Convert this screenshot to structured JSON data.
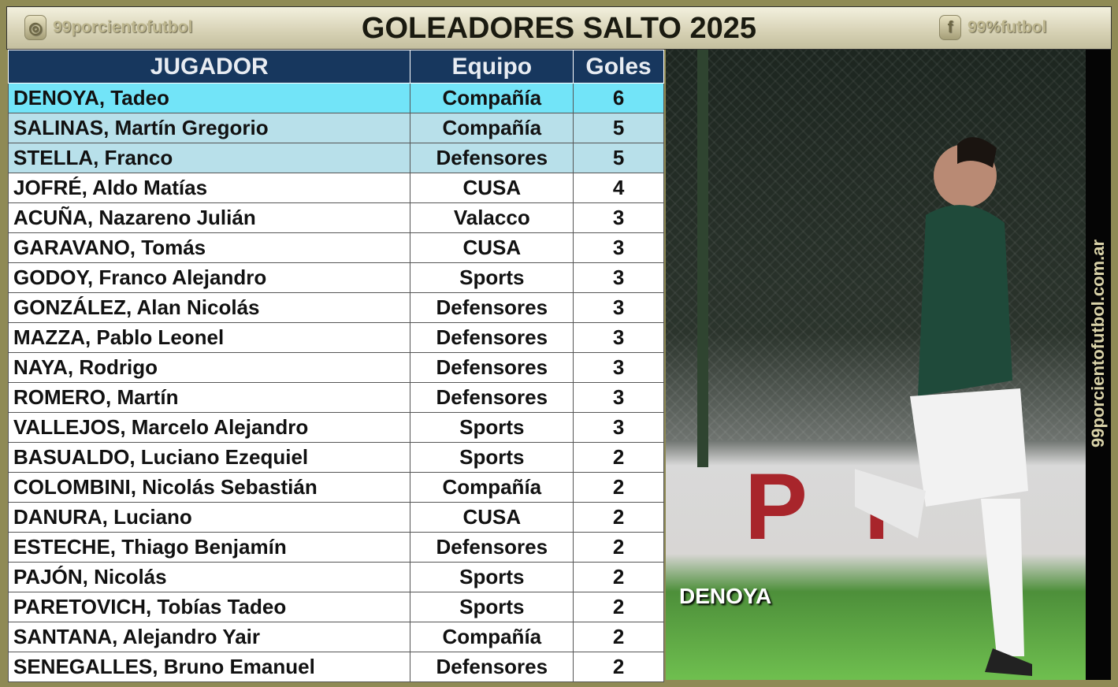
{
  "header": {
    "title": "GOLEADORES SALTO 2025",
    "instagram": {
      "icon": "instagram-icon",
      "handle": "99porcientofutbol"
    },
    "facebook": {
      "icon": "facebook-icon",
      "handle": "99%futbol"
    }
  },
  "table": {
    "columns": [
      "JUGADOR",
      "Equipo",
      "Goles"
    ],
    "rows": [
      [
        "DENOYA, Tadeo",
        "Compañía",
        "6"
      ],
      [
        "SALINAS, Martín Gregorio",
        "Compañía",
        "5"
      ],
      [
        "STELLA, Franco",
        "Defensores",
        "5"
      ],
      [
        "JOFRÉ, Aldo Matías",
        "CUSA",
        "4"
      ],
      [
        "ACUÑA, Nazareno Julián",
        "Valacco",
        "3"
      ],
      [
        "GARAVANO, Tomás",
        "CUSA",
        "3"
      ],
      [
        "GODOY, Franco Alejandro",
        "Sports",
        "3"
      ],
      [
        "GONZÁLEZ, Alan Nicolás",
        "Defensores",
        "3"
      ],
      [
        "MAZZA, Pablo Leonel",
        "Defensores",
        "3"
      ],
      [
        "NAYA, Rodrigo",
        "Defensores",
        "3"
      ],
      [
        "ROMERO, Martín",
        "Defensores",
        "3"
      ],
      [
        "VALLEJOS, Marcelo Alejandro",
        "Sports",
        "3"
      ],
      [
        "BASUALDO, Luciano Ezequiel",
        "Sports",
        "2"
      ],
      [
        "COLOMBINI, Nicolás Sebastián",
        "Compañía",
        "2"
      ],
      [
        "DANURA, Luciano",
        "CUSA",
        "2"
      ],
      [
        "ESTECHE, Thiago Benjamín",
        "Defensores",
        "2"
      ],
      [
        "PAJÓN, Nicolás",
        "Sports",
        "2"
      ],
      [
        "PARETOVICH, Tobías Tadeo",
        "Sports",
        "2"
      ],
      [
        "SANTANA, Alejandro Yair",
        "Compañía",
        "2"
      ],
      [
        "SENEGALLES, Bruno Emanuel",
        "Defensores",
        "2"
      ]
    ]
  },
  "photo": {
    "caption": "DENOYA"
  },
  "website": "99porcientofutbol.com.ar",
  "colors": {
    "header_bg": "#17375e",
    "leader_row": "#72e4f8",
    "podium_rows": "#b8e0ea",
    "frame": "#8f8a55"
  }
}
